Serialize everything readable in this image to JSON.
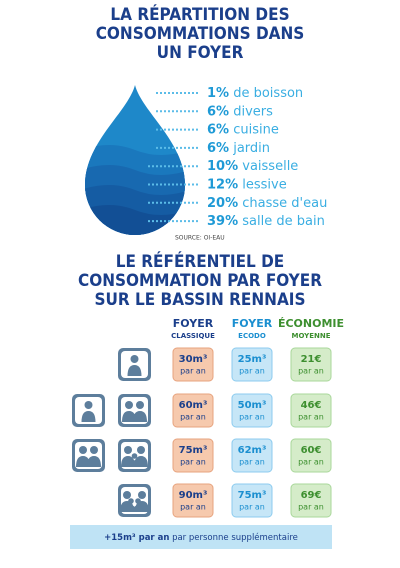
{
  "header": {
    "title_lines": [
      "LA RÉPARTITION DES",
      "CONSOMMATIONS DANS",
      "UN FOYER"
    ]
  },
  "breakdown": [
    {
      "percent": "1%",
      "label": "de boisson"
    },
    {
      "percent": "6%",
      "label": "divers"
    },
    {
      "percent": "6%",
      "label": "cuisine"
    },
    {
      "percent": "6%",
      "label": "jardin"
    },
    {
      "percent": "10%",
      "label": "vaisselle"
    },
    {
      "percent": "12%",
      "label": "lessive"
    },
    {
      "percent": "20%",
      "label": "chasse d'eau"
    },
    {
      "percent": "39%",
      "label": "salle de bain"
    }
  ],
  "source": "SOURCE: OI-EAU",
  "section2": {
    "title_lines": [
      "LE RÉFÉRENTIEL DE",
      "CONSOMMATION PAR FOYER",
      "SUR LE BASSIN RENNAIS"
    ]
  },
  "table": {
    "columns": [
      {
        "line1": "FOYER",
        "line2": "CLASSIQUE"
      },
      {
        "line1": "FOYER",
        "line2": "ECODO"
      },
      {
        "line1": "ÉCONOMIE",
        "line2": "MOYENNE"
      }
    ],
    "rows": [
      [
        {
          "value": "30m³",
          "unit": "par an"
        },
        {
          "value": "25m³",
          "unit": "par an"
        },
        {
          "value": "21€",
          "unit": "par an"
        }
      ],
      [
        {
          "value": "60m³",
          "unit": "par an"
        },
        {
          "value": "50m³",
          "unit": "par an"
        },
        {
          "value": "46€",
          "unit": "par an"
        }
      ],
      [
        {
          "value": "75m³",
          "unit": "par an"
        },
        {
          "value": "62m³",
          "unit": "par an"
        },
        {
          "value": "60€",
          "unit": "par an"
        }
      ],
      [
        {
          "value": "90m³",
          "unit": "par an"
        },
        {
          "value": "75m³",
          "unit": "par an"
        },
        {
          "value": "69€",
          "unit": "par an"
        }
      ]
    ]
  },
  "footer": {
    "highlight": "+15m³ par an",
    "text": "par personne supplémentaire"
  }
}
